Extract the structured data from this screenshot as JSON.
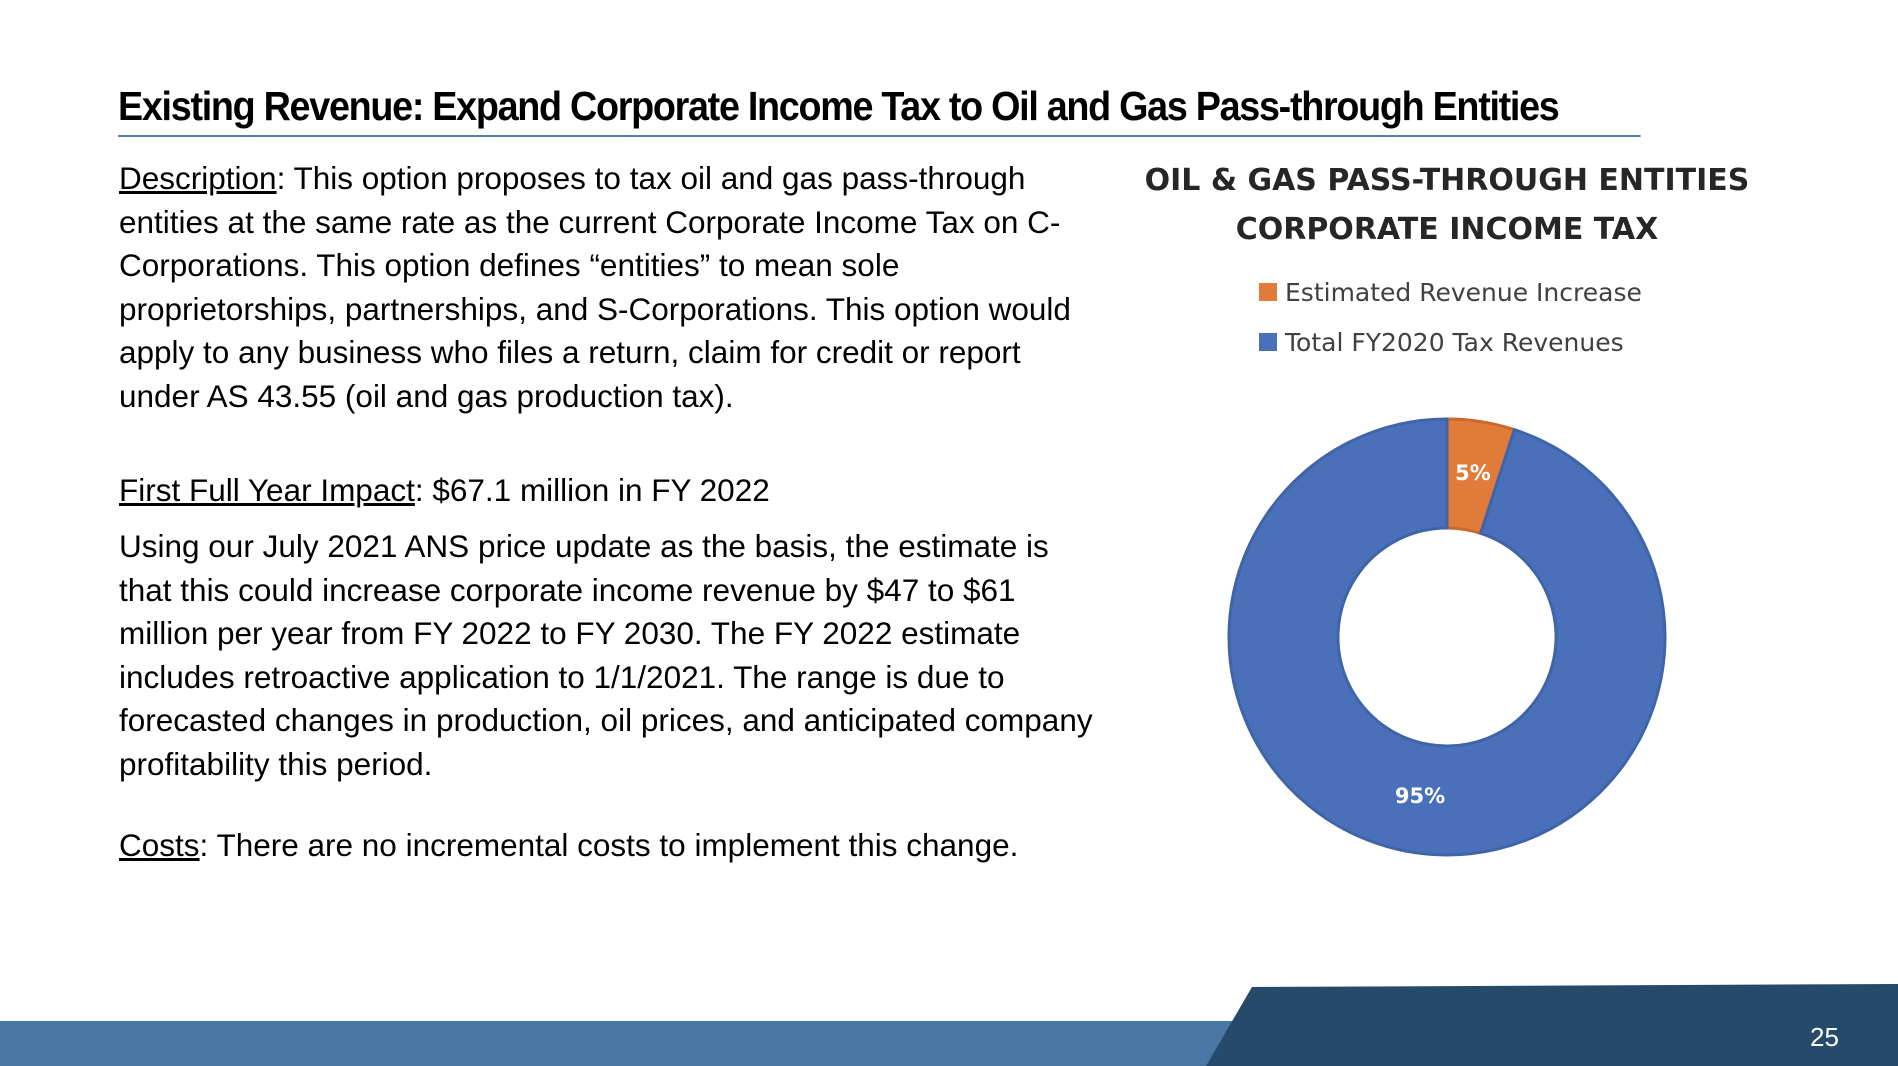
{
  "slide": {
    "title": "Existing Revenue:  Expand Corporate Income Tax to Oil and Gas Pass-through Entities",
    "page_number": "25"
  },
  "description": {
    "label": "Description",
    "text": ":  This option proposes to tax oil and gas pass-through entities at the same rate as the current Corporate Income Tax on C-Corporations.  This option defines “entities” to mean sole proprietorships, partnerships, and S-Corporations.  This option would apply to any business who files a return, claim for credit or report under AS 43.55 (oil and gas production tax)."
  },
  "first_full_year_impact": {
    "label": "First Full Year Impact",
    "text": ":  $67.1 million in FY 2022"
  },
  "estimate": {
    "text": "Using our July 2021 ANS price update as the basis, the estimate is that this could increase corporate income revenue by $47 to $61 million per year from FY 2022 to FY 2030.  The FY 2022 estimate includes retroactive application to 1/1/2021.  The range is due to forecasted changes in production, oil prices, and anticipated company profitability this period."
  },
  "costs": {
    "label": "Costs",
    "text": ":  There are no incremental costs to implement this change."
  },
  "chart_data": {
    "type": "pie",
    "variant": "donut",
    "title": "OIL & GAS PASS-THROUGH ENTITIES CORPORATE INCOME TAX",
    "title_lines": [
      "OIL & GAS PASS-THROUGH ENTITIES",
      "CORPORATE INCOME TAX"
    ],
    "legend_position": "top",
    "categories": [
      "Estimated Revenue Increase",
      "Total FY2020 Tax Revenues"
    ],
    "values": [
      5,
      95
    ],
    "labels": [
      "5%",
      "95%"
    ],
    "colors": [
      "#e07b39",
      "#4a70b9"
    ]
  }
}
